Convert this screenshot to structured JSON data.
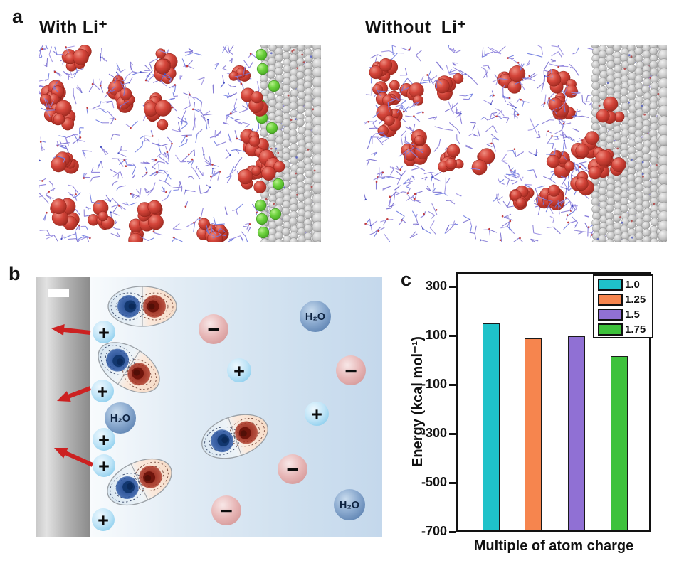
{
  "figure": {
    "background": "#ffffff",
    "panel_a": {
      "label": "a",
      "left_title": "With Li⁺",
      "right_title": "Without  Li⁺",
      "colors": {
        "molecule_red": "#d4453a",
        "lithium_green": "#6fd33f",
        "electrode_gray": "#c9c9c9",
        "solvent_purple": "#8a7fd6"
      }
    },
    "panel_b": {
      "label": "b",
      "water_label": "H₂O",
      "cation_symbol": "+",
      "anion_symbol": "−",
      "counts": {
        "surface_cations": 5,
        "free_cations": 2,
        "anions": 4,
        "water_molecules": 3,
        "dipole_contours": 4,
        "arrows": 3
      },
      "colors": {
        "cation_blue": "#9ed6f1",
        "anion_pink": "#dfa0a0",
        "water_blue": "#6f94c2",
        "arrow_red": "#cc2121",
        "electrode_dark": "#8f8f8f",
        "solution_blue": "#c6d9ec"
      }
    },
    "panel_c": {
      "label": "c"
    }
  },
  "chart_data": {
    "type": "bar",
    "title": "",
    "xlabel": "Multiple of atom charge",
    "ylabel": "Energy (kcal mol⁻¹)",
    "categories": [
      "1.0",
      "1.25",
      "1.5",
      "1.75"
    ],
    "values": [
      150,
      87,
      97,
      15
    ],
    "bar_colors": [
      "#1fc2c9",
      "#f6854e",
      "#9070d4",
      "#3ec23c"
    ],
    "yticks": [
      300,
      100,
      -100,
      -300,
      -500,
      -700
    ],
    "ylim": [
      -700,
      360
    ],
    "bar_baseline": -700,
    "grid": false,
    "legend": {
      "position": "top-right",
      "entries": [
        {
          "label": "1.0",
          "color": "#1fc2c9"
        },
        {
          "label": "1.25",
          "color": "#f6854e"
        },
        {
          "label": "1.5",
          "color": "#9070d4"
        },
        {
          "label": "1.75",
          "color": "#3ec23c"
        }
      ]
    }
  }
}
